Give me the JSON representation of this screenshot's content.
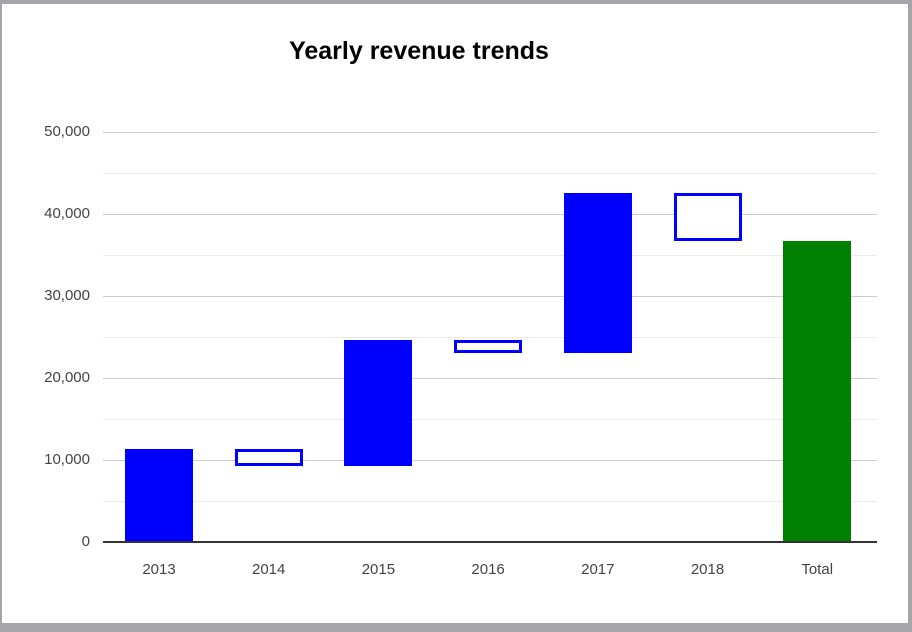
{
  "chart_data": {
    "type": "waterfall",
    "title": "Yearly revenue trends",
    "categories": [
      "2013",
      "2014",
      "2015",
      "2016",
      "2017",
      "2018",
      "Total"
    ],
    "series": [
      {
        "label": "2013",
        "start": 0,
        "end": 11300,
        "delta": 11300,
        "kind": "increase"
      },
      {
        "label": "2014",
        "start": 11300,
        "end": 9200,
        "delta": -2100,
        "kind": "decrease"
      },
      {
        "label": "2015",
        "start": 9200,
        "end": 24600,
        "delta": 15400,
        "kind": "increase"
      },
      {
        "label": "2016",
        "start": 24600,
        "end": 23000,
        "delta": -1600,
        "kind": "decrease"
      },
      {
        "label": "2017",
        "start": 23000,
        "end": 42500,
        "delta": 19500,
        "kind": "increase"
      },
      {
        "label": "2018",
        "start": 42500,
        "end": 36600,
        "delta": -5900,
        "kind": "decrease"
      },
      {
        "label": "Total",
        "start": 0,
        "end": 36600,
        "delta": 36600,
        "kind": "total"
      }
    ],
    "y_axis": {
      "min": 0,
      "max": 50000,
      "major_step": 10000,
      "minor_step": 5000,
      "tick_labels": [
        "0",
        "10,000",
        "20,000",
        "30,000",
        "40,000",
        "50,000"
      ]
    },
    "legend": "none",
    "grid": true,
    "colors": {
      "increase_fill": "#0000ff",
      "decrease_fill": "#ffffff",
      "decrease_border": "#0000ff",
      "total_fill": "#008000",
      "major_gridline": "#cccccc",
      "minor_gridline": "#ebebeb",
      "baseline": "#333333",
      "axis_text": "#444444",
      "title_text": "#000000",
      "frame_border": "#a5a5aa",
      "background": "#ffffff"
    }
  }
}
